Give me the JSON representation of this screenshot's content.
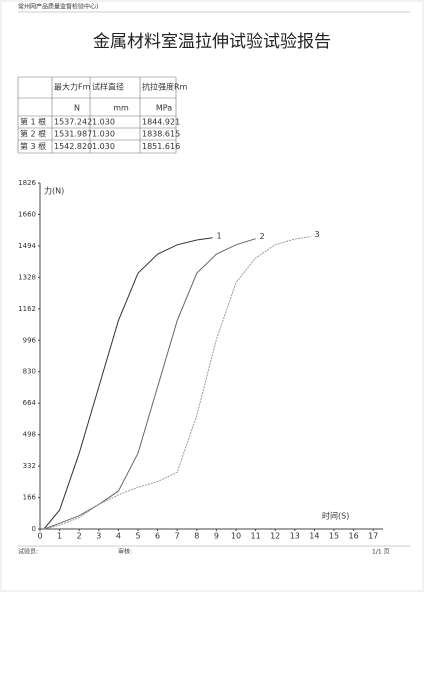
{
  "header": {
    "org": "常州网产品质量监督检验中心)",
    "title": "金属材料室温拉伸试验试验报告"
  },
  "table": {
    "columns": [
      "最大力Fm",
      "试样直径",
      "抗拉强度Rm"
    ],
    "units": [
      "N",
      "mm",
      "MPa"
    ],
    "rows": [
      [
        "第 1 根",
        "1537.242",
        "1.030",
        "1844.921"
      ],
      [
        "第 2 根",
        "1531.987",
        "1.030",
        "1838.615"
      ],
      [
        "第 3 根",
        "1542.820",
        "1.030",
        "1851.616"
      ]
    ]
  },
  "chart_data": {
    "type": "line",
    "ylabel": "力(N)",
    "xlabel": "时间(S)",
    "xlim": [
      0,
      17.5
    ],
    "ylim": [
      0,
      1826
    ],
    "xticks": [
      0,
      1,
      2,
      3,
      4,
      5,
      6,
      7,
      8,
      9,
      10,
      11,
      12,
      13,
      14,
      15,
      16,
      17
    ],
    "yticks": [
      0,
      166,
      332,
      498,
      664,
      830,
      996,
      1162,
      1328,
      1494,
      1660,
      1826
    ],
    "series": [
      {
        "name": "1",
        "color": "#333333",
        "x": [
          0.2,
          1,
          2,
          3,
          4,
          5,
          6,
          7,
          8,
          8.8
        ],
        "values": [
          0,
          100,
          400,
          750,
          1100,
          1350,
          1450,
          1500,
          1525,
          1537
        ]
      },
      {
        "name": "2",
        "color": "#666666",
        "x": [
          0.2,
          1,
          2,
          3,
          4,
          5,
          6,
          7,
          8,
          9,
          10,
          11
        ],
        "values": [
          0,
          30,
          70,
          130,
          200,
          400,
          750,
          1100,
          1350,
          1450,
          1500,
          1532
        ]
      },
      {
        "name": "3",
        "color": "#999999",
        "x": [
          0.2,
          1,
          2,
          3,
          4,
          5,
          6,
          7,
          8,
          9,
          10,
          11,
          12,
          13,
          13.8
        ],
        "values": [
          0,
          20,
          60,
          130,
          180,
          220,
          250,
          300,
          600,
          1000,
          1300,
          1430,
          1500,
          1530,
          1543
        ]
      }
    ]
  },
  "footer": {
    "tester": "试验员:",
    "reviewer": "审核:",
    "page": "1/1 页"
  }
}
